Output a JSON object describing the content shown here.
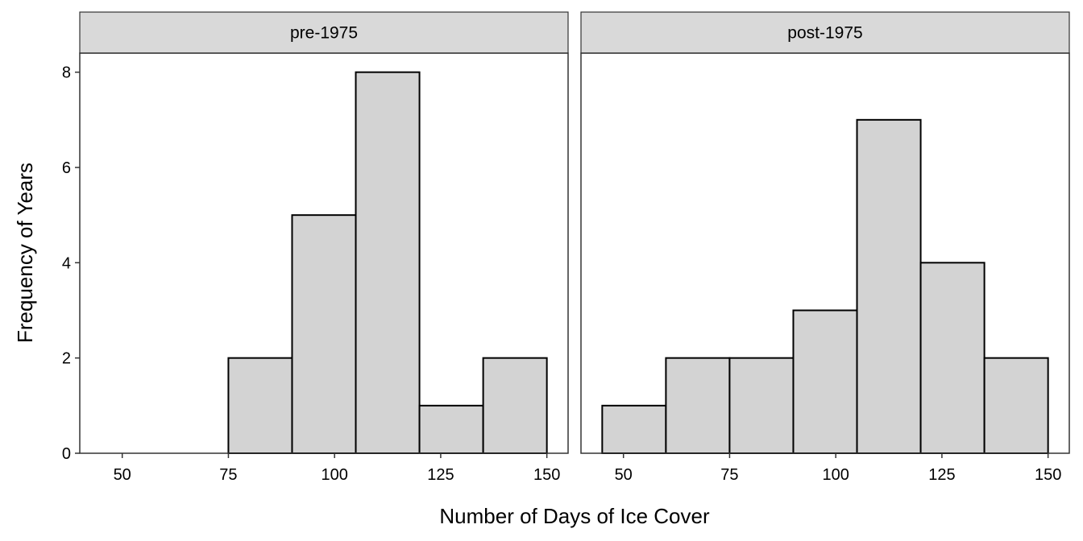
{
  "chart_data": {
    "type": "bar",
    "xlabel": "Number of Days of Ice Cover",
    "ylabel": "Frequency of Years",
    "xlim": [
      40,
      155
    ],
    "ylim": [
      0,
      8.4
    ],
    "x_ticks": [
      50,
      75,
      100,
      125,
      150
    ],
    "y_ticks": [
      0,
      2,
      4,
      6,
      8
    ],
    "bin_width": 15,
    "panels": [
      {
        "strip": "pre-1975",
        "bins": [
          {
            "x0": 75,
            "x1": 90,
            "count": 2
          },
          {
            "x0": 90,
            "x1": 105,
            "count": 5
          },
          {
            "x0": 105,
            "x1": 120,
            "count": 8
          },
          {
            "x0": 120,
            "x1": 135,
            "count": 1
          },
          {
            "x0": 135,
            "x1": 150,
            "count": 2
          }
        ]
      },
      {
        "strip": "post-1975",
        "bins": [
          {
            "x0": 45,
            "x1": 60,
            "count": 1
          },
          {
            "x0": 60,
            "x1": 75,
            "count": 2
          },
          {
            "x0": 75,
            "x1": 90,
            "count": 2
          },
          {
            "x0": 90,
            "x1": 105,
            "count": 3
          },
          {
            "x0": 105,
            "x1": 120,
            "count": 7
          },
          {
            "x0": 120,
            "x1": 135,
            "count": 4
          },
          {
            "x0": 135,
            "x1": 150,
            "count": 2
          }
        ]
      }
    ],
    "grid": false,
    "colors": {
      "bar_fill": "#d3d3d3",
      "bar_stroke": "#000000",
      "strip_fill": "#d9d9d9"
    }
  }
}
